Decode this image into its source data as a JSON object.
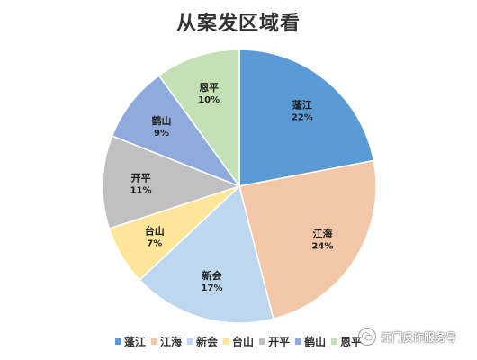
{
  "chart_data": {
    "type": "pie",
    "title": "从案发区域看",
    "slices": [
      {
        "label": "蓬江",
        "value": 22,
        "pct_label": "22%",
        "color": "#5b9bd5"
      },
      {
        "label": "江海",
        "value": 24,
        "pct_label": "24%",
        "color": "#f4c7a8"
      },
      {
        "label": "新会",
        "value": 17,
        "pct_label": "17%",
        "color": "#bdd7ee"
      },
      {
        "label": "台山",
        "value": 7,
        "pct_label": "7%",
        "color": "#ffe699"
      },
      {
        "label": "开平",
        "value": 11,
        "pct_label": "11%",
        "color": "#c0c0c0"
      },
      {
        "label": "鹤山",
        "value": 9,
        "pct_label": "9%",
        "color": "#8faadc"
      },
      {
        "label": "恩平",
        "value": 10,
        "pct_label": "10%",
        "color": "#c5e0b4"
      }
    ],
    "legend_position": "bottom",
    "start_angle": "12 o'clock",
    "direction": "clockwise"
  },
  "watermark": {
    "text": "江门反诈服务号"
  }
}
